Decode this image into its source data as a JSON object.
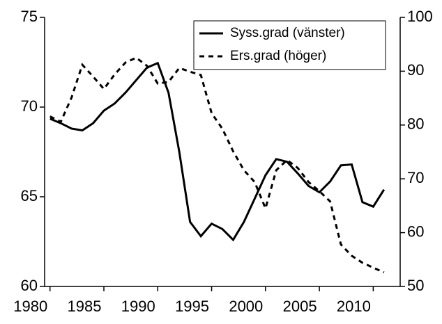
{
  "chart_data": {
    "type": "line",
    "x": [
      1980,
      1981,
      1982,
      1983,
      1984,
      1985,
      1986,
      1987,
      1988,
      1989,
      1990,
      1991,
      1992,
      1993,
      1994,
      1995,
      1996,
      1997,
      1998,
      1999,
      2000,
      2001,
      2002,
      2003,
      2004,
      2005,
      2006,
      2007,
      2008,
      2009,
      2010,
      2011
    ],
    "series": [
      {
        "name": "Syss.grad (vänster)",
        "color": "#000000",
        "dash": false,
        "values": [
          69.35,
          69.1,
          68.8,
          68.7,
          69.1,
          69.8,
          70.2,
          70.8,
          71.5,
          72.2,
          72.45,
          70.8,
          67.5,
          63.6,
          62.8,
          63.5,
          63.2,
          62.6,
          63.6,
          64.9,
          66.2,
          67.1,
          66.95,
          66.3,
          65.6,
          65.25,
          65.85,
          66.75,
          66.8,
          64.7,
          64.45,
          65.4
        ]
      },
      {
        "name": "Ers.grad (höger)",
        "color": "#000000",
        "dash": true,
        "axis": "y2",
        "values": [
          81.6,
          80.6,
          85.1,
          91.2,
          89,
          86.7,
          89.4,
          91.6,
          92.5,
          91,
          87.7,
          88,
          90.6,
          89.9,
          89.3,
          82.2,
          79.3,
          75.1,
          71.6,
          69.4,
          64.5,
          71.6,
          73.5,
          72,
          69.4,
          67.7,
          65.8,
          57.8,
          55.7,
          54.4,
          53.5,
          52.6
        ]
      }
    ],
    "xlim": [
      1979.5,
      2012.5
    ],
    "xticks": [
      1980,
      1985,
      1990,
      1995,
      2000,
      2005,
      2010
    ],
    "ylim": [
      60,
      75
    ],
    "yticks": [
      60,
      65,
      70,
      75
    ],
    "y2lim": [
      50,
      100
    ],
    "y2ticks": [
      50,
      60,
      70,
      80,
      90,
      100
    ],
    "legend": "upper right"
  }
}
